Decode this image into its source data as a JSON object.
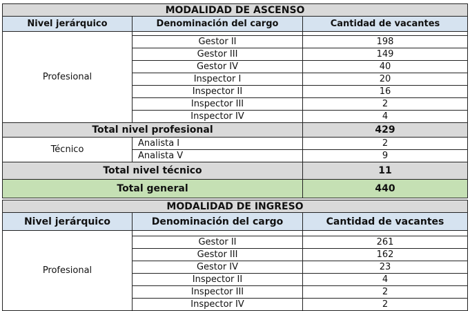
{
  "ascenso": {
    "title": "MODALIDAD DE ASCENSO",
    "headers": [
      "Nivel jerárquico",
      "Denominación del cargo",
      "Cantidad de vacantes"
    ],
    "profesional_label": "Profesional",
    "profesional_rows": [
      {
        "cargo": "Gestor II",
        "vacantes": "198"
      },
      {
        "cargo": "Gestor III",
        "vacantes": "149"
      },
      {
        "cargo": "Gestor IV",
        "vacantes": "40"
      },
      {
        "cargo": "Inspector I",
        "vacantes": "20"
      },
      {
        "cargo": "Inspector II",
        "vacantes": "16"
      },
      {
        "cargo": "Inspector III",
        "vacantes": "2"
      },
      {
        "cargo": "Inspector IV",
        "vacantes": "4"
      }
    ],
    "total_profesional_label": "Total nivel profesional",
    "total_profesional_value": "429",
    "tecnico_label": "Técnico",
    "tecnico_rows": [
      {
        "cargo": "Analista I",
        "vacantes": "2"
      },
      {
        "cargo": "Analista V",
        "vacantes": "9"
      }
    ],
    "total_tecnico_label": "Total nivel técnico",
    "total_tecnico_value": "11",
    "total_general_label": "Total general",
    "total_general_value": "440"
  },
  "ingreso": {
    "title": "MODALIDAD DE INGRESO",
    "headers": [
      "Nivel jerárquico",
      "Denominación del cargo",
      "Cantidad de vacantes"
    ],
    "profesional_label": "Profesional",
    "profesional_rows": [
      {
        "cargo": "Gestor II",
        "vacantes": "261"
      },
      {
        "cargo": "Gestor III",
        "vacantes": "162"
      },
      {
        "cargo": "Gestor IV",
        "vacantes": "23"
      },
      {
        "cargo": "Inspector II",
        "vacantes": "4"
      },
      {
        "cargo": "Inspector III",
        "vacantes": "2"
      },
      {
        "cargo": "Inspector IV",
        "vacantes": "2"
      }
    ]
  }
}
